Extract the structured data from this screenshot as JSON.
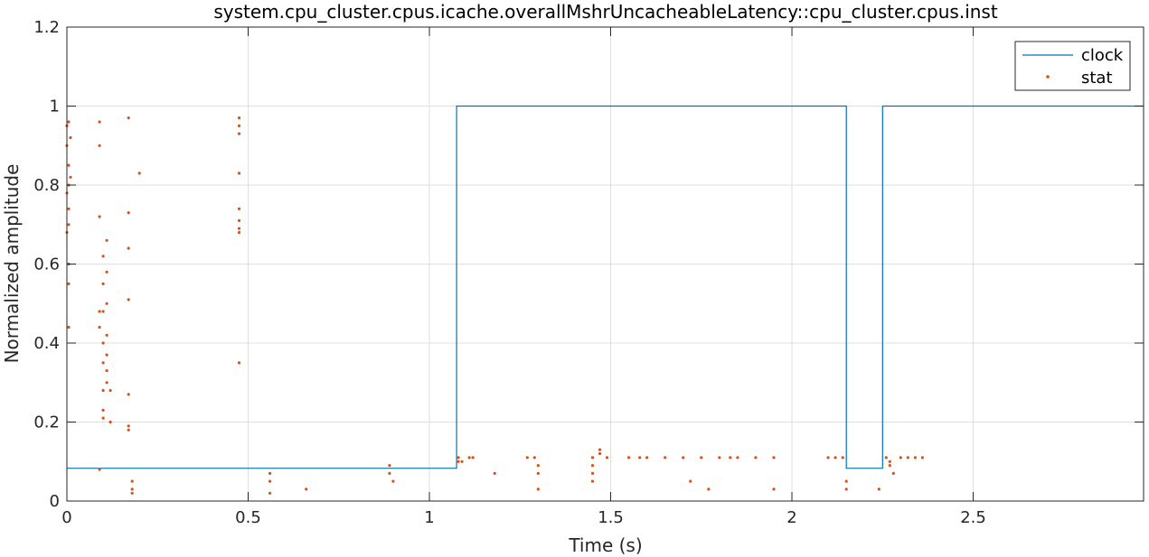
{
  "chart_data": {
    "type": "line",
    "title": "system.cpu_cluster.cpus.icache.overallMshrUncacheableLatency::cpu_cluster.cpus.inst",
    "xlabel": "Time (s)",
    "ylabel": "Normalized amplitude",
    "xlim": [
      0,
      2.97
    ],
    "ylim": [
      0,
      1.2
    ],
    "xticks": [
      0,
      0.5,
      1,
      1.5,
      2,
      2.5
    ],
    "xtick_labels": [
      "0",
      "0.5",
      "1",
      "1.5",
      "2",
      "2.5"
    ],
    "yticks": [
      0,
      0.2,
      0.4,
      0.6,
      0.8,
      1,
      1.2
    ],
    "ytick_labels": [
      "0",
      "0.2",
      "0.4",
      "0.6",
      "0.8",
      "1",
      "1.2"
    ],
    "grid": true,
    "legend_position": "top-right",
    "series": [
      {
        "name": "clock",
        "style": "step-line",
        "color": "#0072BD",
        "x": [
          0,
          1.075,
          1.075,
          2.15,
          2.15,
          2.25,
          2.25,
          2.97
        ],
        "y": [
          0.083,
          0.083,
          1.0,
          1.0,
          0.083,
          0.083,
          1.0,
          1.0
        ]
      },
      {
        "name": "stat",
        "style": "dots",
        "color": "#D95319",
        "points": [
          [
            0.0,
            0.95
          ],
          [
            0.0,
            0.9
          ],
          [
            0.005,
            0.96
          ],
          [
            0.005,
            0.85
          ],
          [
            0.005,
            0.8
          ],
          [
            0.005,
            0.74
          ],
          [
            0.005,
            0.7
          ],
          [
            0.0,
            0.68
          ],
          [
            0.005,
            0.6
          ],
          [
            0.005,
            0.55
          ],
          [
            0.005,
            0.44
          ],
          [
            0.01,
            0.92
          ],
          [
            0.01,
            0.82
          ],
          [
            0.0,
            0.78
          ],
          [
            0.09,
            0.96
          ],
          [
            0.09,
            0.9
          ],
          [
            0.09,
            0.72
          ],
          [
            0.09,
            0.48
          ],
          [
            0.09,
            0.44
          ],
          [
            0.09,
            0.08
          ],
          [
            0.1,
            0.62
          ],
          [
            0.1,
            0.55
          ],
          [
            0.1,
            0.48
          ],
          [
            0.1,
            0.4
          ],
          [
            0.1,
            0.35
          ],
          [
            0.1,
            0.28
          ],
          [
            0.1,
            0.23
          ],
          [
            0.1,
            0.21
          ],
          [
            0.11,
            0.66
          ],
          [
            0.11,
            0.58
          ],
          [
            0.11,
            0.5
          ],
          [
            0.11,
            0.42
          ],
          [
            0.11,
            0.37
          ],
          [
            0.11,
            0.33
          ],
          [
            0.11,
            0.3
          ],
          [
            0.12,
            0.2
          ],
          [
            0.12,
            0.28
          ],
          [
            0.17,
            0.97
          ],
          [
            0.17,
            0.73
          ],
          [
            0.17,
            0.64
          ],
          [
            0.17,
            0.51
          ],
          [
            0.17,
            0.27
          ],
          [
            0.17,
            0.19
          ],
          [
            0.17,
            0.18
          ],
          [
            0.18,
            0.05
          ],
          [
            0.18,
            0.03
          ],
          [
            0.18,
            0.02
          ],
          [
            0.2,
            0.83
          ],
          [
            0.475,
            0.97
          ],
          [
            0.475,
            0.95
          ],
          [
            0.475,
            0.93
          ],
          [
            0.475,
            0.83
          ],
          [
            0.475,
            0.74
          ],
          [
            0.475,
            0.71
          ],
          [
            0.475,
            0.69
          ],
          [
            0.475,
            0.68
          ],
          [
            0.475,
            0.35
          ],
          [
            0.56,
            0.07
          ],
          [
            0.56,
            0.05
          ],
          [
            0.56,
            0.02
          ],
          [
            0.66,
            0.03
          ],
          [
            0.89,
            0.09
          ],
          [
            0.89,
            0.07
          ],
          [
            0.9,
            0.05
          ],
          [
            1.08,
            0.11
          ],
          [
            1.08,
            0.1
          ],
          [
            1.09,
            0.1
          ],
          [
            1.11,
            0.11
          ],
          [
            1.12,
            0.11
          ],
          [
            1.18,
            0.07
          ],
          [
            1.27,
            0.11
          ],
          [
            1.29,
            0.11
          ],
          [
            1.3,
            0.09
          ],
          [
            1.3,
            0.07
          ],
          [
            1.3,
            0.03
          ],
          [
            1.45,
            0.11
          ],
          [
            1.45,
            0.09
          ],
          [
            1.45,
            0.07
          ],
          [
            1.45,
            0.05
          ],
          [
            1.47,
            0.13
          ],
          [
            1.47,
            0.12
          ],
          [
            1.49,
            0.11
          ],
          [
            1.55,
            0.11
          ],
          [
            1.58,
            0.11
          ],
          [
            1.6,
            0.11
          ],
          [
            1.65,
            0.11
          ],
          [
            1.7,
            0.11
          ],
          [
            1.72,
            0.05
          ],
          [
            1.75,
            0.11
          ],
          [
            1.8,
            0.11
          ],
          [
            1.85,
            0.11
          ],
          [
            1.9,
            0.11
          ],
          [
            1.95,
            0.11
          ],
          [
            1.77,
            0.03
          ],
          [
            1.83,
            0.11
          ],
          [
            1.95,
            0.03
          ],
          [
            2.1,
            0.11
          ],
          [
            2.12,
            0.11
          ],
          [
            2.14,
            0.11
          ],
          [
            2.15,
            0.05
          ],
          [
            2.15,
            0.03
          ],
          [
            2.24,
            0.03
          ],
          [
            2.26,
            0.11
          ],
          [
            2.27,
            0.1
          ],
          [
            2.27,
            0.09
          ],
          [
            2.28,
            0.07
          ],
          [
            2.3,
            0.11
          ],
          [
            2.32,
            0.11
          ],
          [
            2.34,
            0.11
          ],
          [
            2.36,
            0.11
          ]
        ]
      }
    ]
  }
}
